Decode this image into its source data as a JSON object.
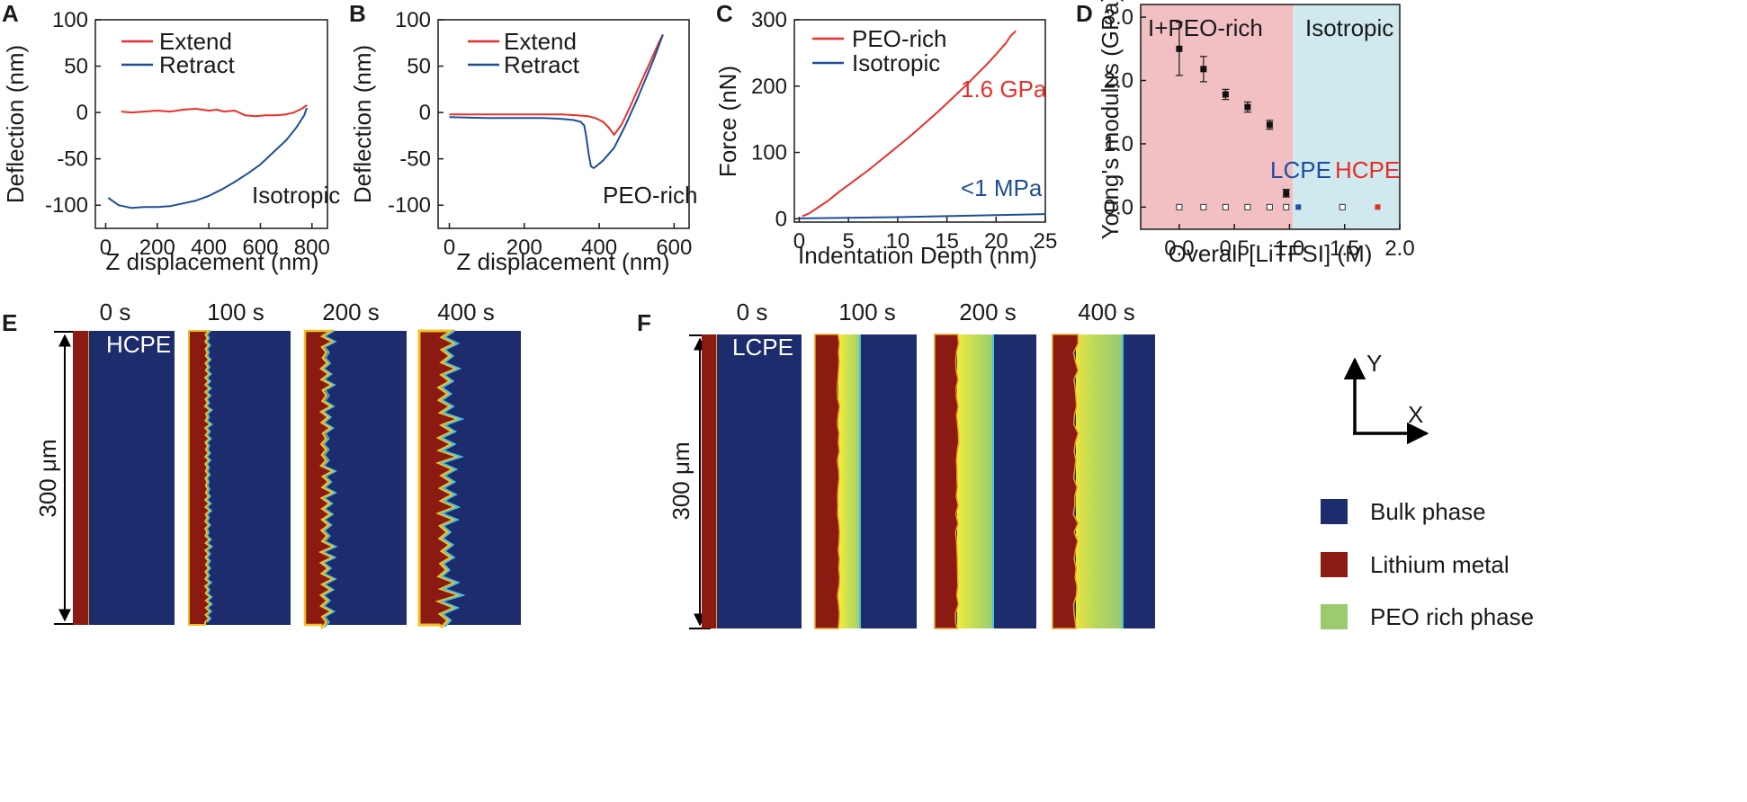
{
  "colors": {
    "extend": "#e8302a",
    "retract": "#1f4e96",
    "pink_region": "#f2c0c2",
    "cyan_region": "#cfe9ee",
    "bulk": "#1d2c6c",
    "lithium": "#8a1a12",
    "peo": "#9bcb6e",
    "lcpe_text": "#1f4a9f",
    "hcpe_text": "#e52f25"
  },
  "panels": {
    "A": "A",
    "B": "B",
    "C": "C",
    "D": "D",
    "E": "E",
    "F": "F"
  },
  "chart_data": [
    {
      "panel": "A",
      "type": "line",
      "xlabel": "Z displacement (nm)",
      "ylabel": "Deflection (nm)",
      "xlim": [
        -40,
        860
      ],
      "ylim": [
        -125,
        100
      ],
      "xticks": [
        0,
        200,
        400,
        600,
        800
      ],
      "yticks": [
        -100,
        -50,
        0,
        50,
        100
      ],
      "legend_position": "top-left",
      "annotation": "Isotropic",
      "series": [
        {
          "name": "Extend",
          "x": [
            60,
            100,
            150,
            200,
            250,
            300,
            350,
            400,
            430,
            460,
            500,
            540,
            580,
            620,
            660,
            700,
            730,
            760,
            780
          ],
          "y": [
            1,
            0,
            1,
            2,
            1,
            3,
            4,
            2,
            3,
            1,
            2,
            -3,
            -4,
            -3,
            -3,
            -2,
            0,
            4,
            8
          ]
        },
        {
          "name": "Retract",
          "x": [
            10,
            50,
            100,
            150,
            200,
            250,
            300,
            350,
            400,
            450,
            500,
            550,
            600,
            650,
            700,
            740,
            770,
            780
          ],
          "y": [
            -92,
            -100,
            -103,
            -102,
            -102,
            -101,
            -98,
            -95,
            -90,
            -83,
            -75,
            -66,
            -56,
            -43,
            -30,
            -16,
            -3,
            5
          ]
        }
      ]
    },
    {
      "panel": "B",
      "type": "line",
      "xlabel": "Z displacement (nm)",
      "ylabel": "Deflection (nm)",
      "xlim": [
        -30,
        640
      ],
      "ylim": [
        -125,
        100
      ],
      "xticks": [
        0,
        200,
        400,
        600
      ],
      "yticks": [
        -100,
        -50,
        0,
        50,
        100
      ],
      "legend_position": "top-left",
      "annotation": "PEO-rich",
      "series": [
        {
          "name": "Extend",
          "x": [
            0,
            100,
            200,
            250,
            300,
            340,
            370,
            390,
            410,
            425,
            440,
            460,
            480,
            500,
            520,
            540,
            560,
            570
          ],
          "y": [
            -2,
            -2,
            -2,
            -2,
            -2,
            -3,
            -4,
            -6,
            -10,
            -16,
            -24,
            -13,
            4,
            22,
            40,
            58,
            76,
            84
          ]
        },
        {
          "name": "Retract",
          "x": [
            0,
            100,
            200,
            250,
            300,
            330,
            350,
            360,
            365,
            372,
            378,
            385,
            395,
            410,
            440,
            470,
            500,
            530,
            550,
            570
          ],
          "y": [
            -5,
            -6,
            -6,
            -6,
            -7,
            -8,
            -10,
            -14,
            -25,
            -45,
            -58,
            -60,
            -57,
            -52,
            -38,
            -14,
            13,
            42,
            62,
            84
          ]
        }
      ]
    },
    {
      "panel": "C",
      "type": "line",
      "xlabel": "Indentation Depth (nm)",
      "ylabel": "Force (nN)",
      "xlim": [
        -0.5,
        25
      ],
      "ylim": [
        -5,
        300
      ],
      "xticks": [
        0,
        5,
        10,
        15,
        20,
        25
      ],
      "yticks": [
        0,
        100,
        200,
        300
      ],
      "legend_position": "top-left",
      "series": [
        {
          "name": "PEO-rich",
          "x": [
            0.3,
            1,
            2,
            3,
            4,
            5,
            6,
            7,
            8,
            9,
            10,
            11,
            12,
            13,
            14,
            15,
            16,
            17,
            18,
            19,
            20,
            21,
            21.5,
            22
          ],
          "y": [
            4,
            8,
            18,
            28,
            40,
            51,
            62,
            73,
            85,
            97,
            109,
            121,
            134,
            147,
            160,
            174,
            188,
            202,
            217,
            232,
            248,
            265,
            276,
            283
          ]
        },
        {
          "name": "Isotropic",
          "x": [
            0,
            5,
            10,
            15,
            20,
            25
          ],
          "y": [
            0.5,
            1.5,
            2.5,
            4,
            5.5,
            7
          ]
        }
      ],
      "annotations": [
        "1.6 GPa",
        "<1 MPa"
      ]
    },
    {
      "panel": "D",
      "type": "scatter",
      "xlabel": "Overall [LiTFSI] (M)",
      "ylabel": "Young's modulus (GPa)",
      "xlim": [
        -0.35,
        2.0
      ],
      "ylim": [
        -0.35,
        3.2
      ],
      "xticks": [
        0.0,
        0.5,
        1.0,
        1.5,
        2.0
      ],
      "yticks": [
        0.0,
        1.0,
        2.0,
        3.0
      ],
      "regions": [
        {
          "label": "I+PEO-rich",
          "from": -0.35,
          "to": 1.03,
          "color": "#f2c0c2"
        },
        {
          "label": "Isotropic",
          "from": 1.03,
          "to": 2.0,
          "color": "#cfe9ee"
        }
      ],
      "series": [
        {
          "name": "",
          "marker": "filled-square",
          "x": [
            0.0,
            0.22,
            0.42,
            0.62,
            0.82,
            0.97
          ],
          "y": [
            2.5,
            2.18,
            1.78,
            1.58,
            1.3,
            0.22
          ],
          "err": [
            0.42,
            0.2,
            0.08,
            0.08,
            0.07,
            0.06
          ]
        },
        {
          "name": "",
          "marker": "open-square",
          "x": [
            0.0,
            0.22,
            0.42,
            0.62,
            0.82,
            0.97,
            1.48
          ],
          "y": [
            0,
            0,
            0,
            0,
            0,
            0,
            0
          ]
        },
        {
          "name": "",
          "marker": "blue-square",
          "x": [
            1.08
          ],
          "y": [
            0
          ]
        },
        {
          "name": "",
          "marker": "red-square",
          "x": [
            1.8
          ],
          "y": [
            0
          ]
        }
      ],
      "annotations": [
        "LCPE",
        "HCPE"
      ]
    }
  ],
  "simulation": {
    "E": {
      "times": [
        "0 s",
        "100 s",
        "200 s",
        "400 s"
      ],
      "label": "HCPE",
      "scale": "300 μm"
    },
    "F": {
      "times": [
        "0 s",
        "100 s",
        "200 s",
        "400 s"
      ],
      "label": "LCPE",
      "scale": "300 μm"
    }
  },
  "axes_key": {
    "y": "Y",
    "x": "X"
  },
  "legend": [
    "Bulk phase",
    "Lithium metal",
    "PEO rich phase"
  ]
}
